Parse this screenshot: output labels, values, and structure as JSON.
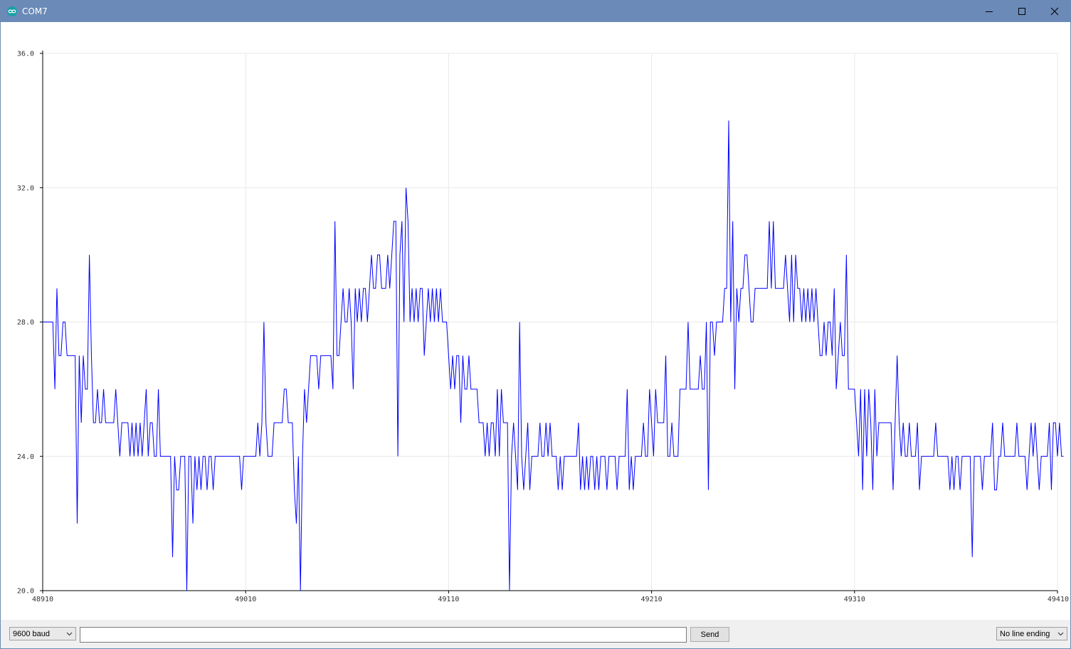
{
  "window": {
    "title": "COM7"
  },
  "icons": {
    "app": "arduino-infinity-icon",
    "minimize": "minimize-icon",
    "maximize": "maximize-icon",
    "close": "close-icon",
    "dropdown": "chevron-down-icon"
  },
  "toolbar": {
    "baud_rate": "9600 baud",
    "input_value": "",
    "send_label": "Send",
    "line_ending": "No line ending"
  },
  "colors": {
    "titlebar": "#6b8ab7",
    "series": "#0000ff",
    "grid": "#e8e8e8",
    "axis": "#000000"
  },
  "chart_data": {
    "type": "line",
    "title": "",
    "xlabel": "",
    "ylabel": "",
    "xlim": [
      48910,
      49410
    ],
    "ylim": [
      20.0,
      36.0
    ],
    "x_ticks": [
      "48910",
      "49010",
      "49110",
      "49210",
      "49310",
      "49410"
    ],
    "y_ticks": [
      "20.0",
      "24.0",
      "28.0",
      "32.0",
      "36.0"
    ],
    "grid": true,
    "x_start": 48910,
    "x_step": 1,
    "series": [
      {
        "name": "",
        "values": [
          28,
          28,
          28,
          28,
          28,
          28,
          26,
          29,
          27,
          27,
          28,
          28,
          27,
          27,
          27,
          27,
          27,
          22,
          27,
          25,
          27,
          26,
          26,
          30,
          27,
          25,
          25,
          26,
          25,
          25,
          26,
          25,
          25,
          25,
          25,
          25,
          26,
          25,
          24,
          25,
          25,
          25,
          25,
          24,
          25,
          24,
          25,
          24,
          25,
          24,
          25,
          26,
          24,
          25,
          25,
          24,
          24,
          26,
          24,
          24,
          24,
          24,
          24,
          24,
          21,
          24,
          23,
          23,
          24,
          24,
          24,
          20,
          24,
          24,
          22,
          24,
          23,
          24,
          23,
          24,
          24,
          23,
          24,
          24,
          23,
          24,
          24,
          24,
          24,
          24,
          24,
          24,
          24,
          24,
          24,
          24,
          24,
          24,
          23,
          24,
          24,
          24,
          24,
          24,
          24,
          24,
          25,
          24,
          25,
          28,
          25,
          24,
          24,
          24,
          25,
          25,
          25,
          25,
          25,
          26,
          26,
          25,
          25,
          25,
          23,
          22,
          24,
          20,
          24,
          26,
          25,
          26,
          27,
          27,
          27,
          27,
          26,
          27,
          27,
          27,
          27,
          27,
          27,
          26,
          31,
          27,
          27,
          28,
          29,
          28,
          28,
          29,
          28,
          26,
          29,
          28,
          29,
          28,
          29,
          29,
          28,
          29,
          30,
          29,
          29,
          30,
          30,
          29,
          29,
          29,
          30,
          29,
          30,
          31,
          31,
          24,
          30,
          31,
          28,
          32,
          31,
          28,
          29,
          28,
          29,
          28,
          29,
          29,
          27,
          28,
          29,
          28,
          29,
          28,
          29,
          28,
          29,
          28,
          28,
          28,
          27,
          26,
          27,
          26,
          27,
          27,
          25,
          27,
          26,
          26,
          27,
          26,
          26,
          26,
          26,
          25,
          25,
          25,
          24,
          25,
          24,
          25,
          25,
          24,
          26,
          24,
          26,
          25,
          25,
          25,
          20,
          24,
          25,
          24,
          23,
          28,
          24,
          23,
          24,
          25,
          23,
          24,
          24,
          24,
          24,
          25,
          24,
          24,
          25,
          24,
          25,
          24,
          24,
          24,
          23,
          24,
          23,
          24,
          24,
          24,
          24,
          24,
          24,
          24,
          25,
          23,
          24,
          23,
          24,
          23,
          24,
          24,
          23,
          24,
          23,
          24,
          24,
          24,
          23,
          24,
          24,
          24,
          24,
          23,
          24,
          24,
          24,
          24,
          26,
          23,
          24,
          23,
          24,
          24,
          24,
          24,
          25,
          24,
          24,
          26,
          25,
          24,
          26,
          25,
          25,
          25,
          25,
          27,
          24,
          24,
          25,
          24,
          24,
          24,
          26,
          26,
          26,
          26,
          28,
          26,
          26,
          26,
          26,
          26,
          27,
          26,
          26,
          28,
          23,
          28,
          28,
          27,
          28,
          28,
          28,
          28,
          29,
          29,
          34,
          28,
          31,
          26,
          29,
          28,
          29,
          29,
          30,
          30,
          29,
          28,
          28,
          29,
          29,
          29,
          29,
          29,
          29,
          29,
          31,
          29,
          31,
          29,
          29,
          29,
          29,
          29,
          30,
          29,
          28,
          30,
          28,
          30,
          29,
          29,
          28,
          29,
          28,
          29,
          28,
          29,
          28,
          29,
          28,
          27,
          27,
          28,
          27,
          28,
          28,
          27,
          29,
          26,
          27,
          28,
          27,
          27,
          30,
          26,
          26,
          26,
          26,
          25,
          24,
          26,
          23,
          26,
          24,
          26,
          25,
          23,
          26,
          24,
          25,
          25,
          25,
          25,
          25,
          25,
          25,
          23,
          25,
          27,
          25,
          24,
          25,
          24,
          24,
          25,
          24,
          24,
          24,
          25,
          23,
          24,
          24,
          24,
          24,
          24,
          24,
          24,
          25,
          24,
          24,
          24,
          24,
          24,
          24,
          23,
          24,
          23,
          24,
          24,
          23,
          24,
          24,
          24,
          24,
          24,
          21,
          24,
          24,
          24,
          24,
          23,
          24,
          24,
          24,
          24,
          25,
          23,
          23,
          24,
          24,
          25,
          24,
          24,
          24,
          24,
          24,
          24,
          25,
          24,
          24,
          24,
          24,
          23,
          24,
          25,
          24,
          25,
          24,
          23,
          24,
          24,
          24,
          24,
          25,
          23,
          25,
          25,
          24,
          25,
          24,
          24
        ]
      }
    ]
  }
}
